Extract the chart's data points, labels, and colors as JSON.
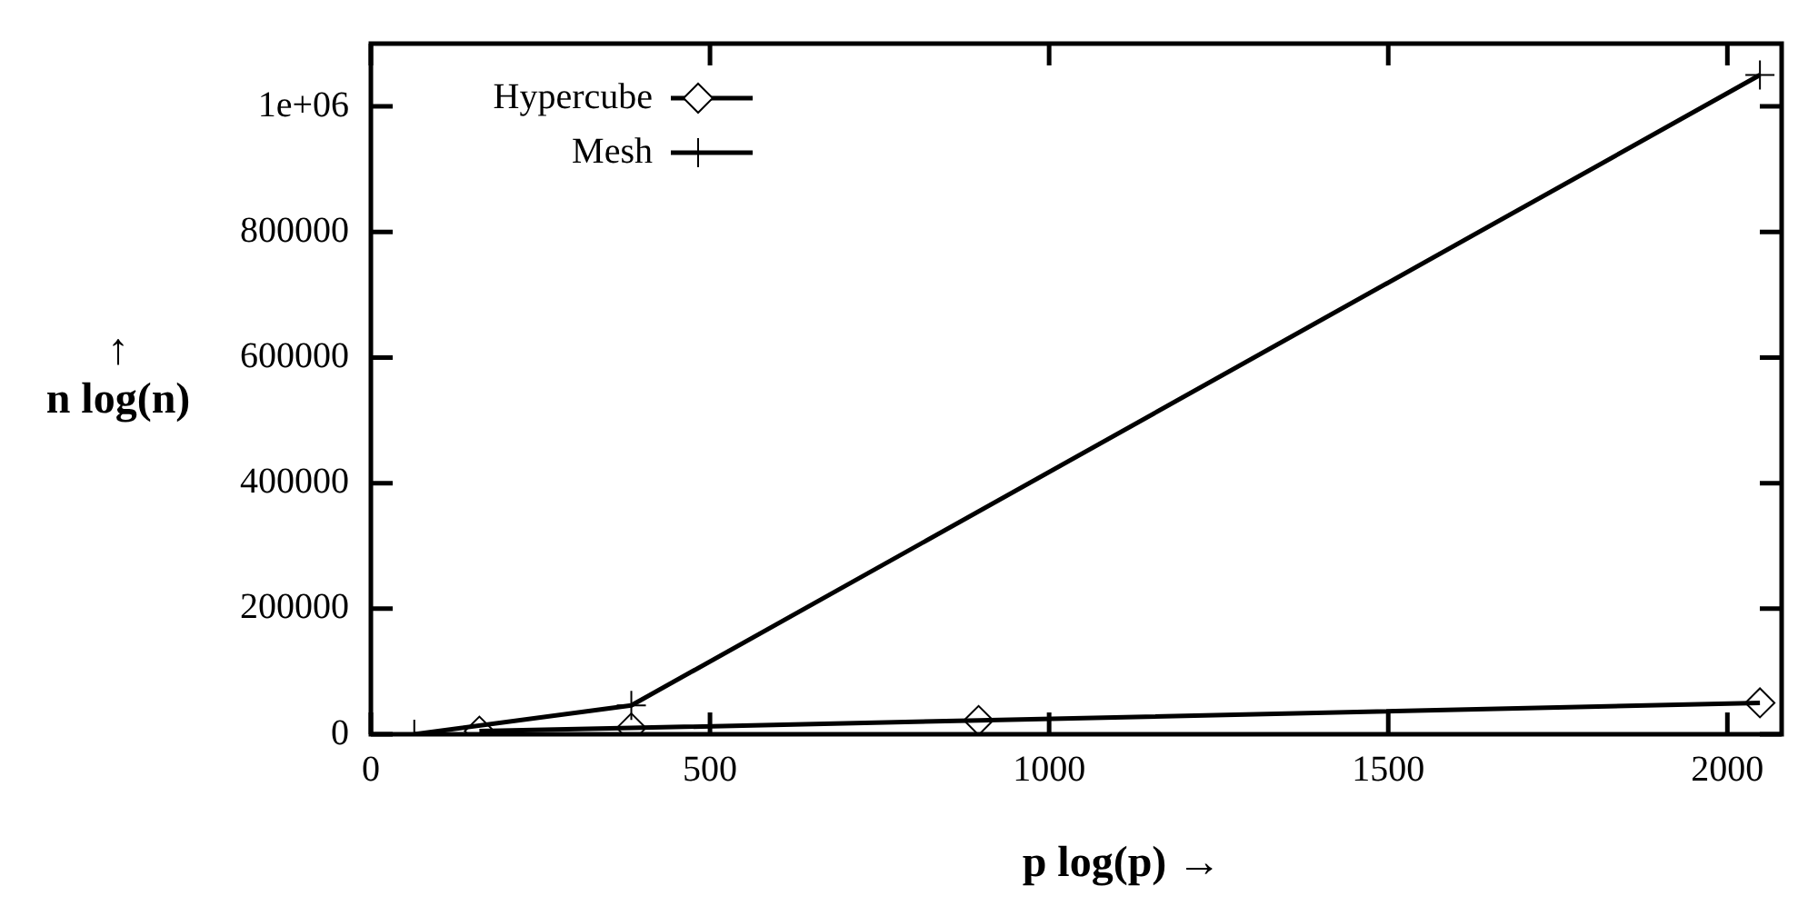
{
  "chart_data": {
    "type": "line",
    "xlabel": "p log(p) →",
    "ylabel": "↑\nn log(n)",
    "xlim": [
      0,
      2080
    ],
    "xticks": [
      0,
      500,
      1000,
      1500,
      2000
    ],
    "ylim": [
      0,
      1100000
    ],
    "yticks": [
      0,
      200000,
      400000,
      600000,
      800000,
      {
        "value": 1000000,
        "label": "1e+06"
      }
    ],
    "grid": false,
    "legend": "top left",
    "series": [
      {
        "name": "Hypercube",
        "color": "#000000",
        "marker": "diamond",
        "x": [
          160,
          384,
          896,
          2048
        ],
        "values": [
          5000,
          10000,
          22000,
          50000
        ]
      },
      {
        "name": "Mesh",
        "color": "#000000",
        "marker": "cross",
        "x": [
          64,
          384,
          2048
        ],
        "values": [
          0,
          46000,
          1050000
        ]
      }
    ]
  }
}
